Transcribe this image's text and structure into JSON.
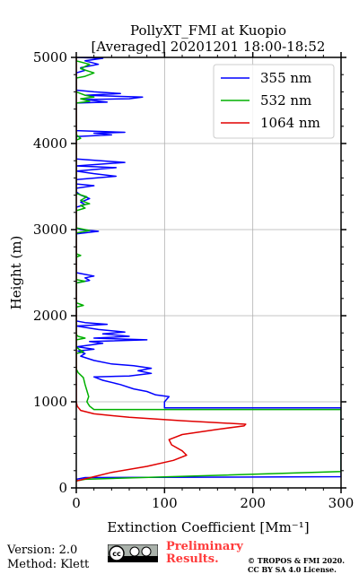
{
  "chart_data": {
    "type": "line",
    "title": "PollyXT_FMI at Kuopio",
    "subtitle": "[Averaged] 20201201 18:00-18:52",
    "xlabel": "Extinction Coefficient [Mm⁻¹]",
    "ylabel": "Height (m)",
    "xlim": [
      0,
      300
    ],
    "ylim": [
      0,
      5000
    ],
    "x_ticks": [
      "0",
      "100",
      "200",
      "300"
    ],
    "y_ticks": [
      "0",
      "1000",
      "2000",
      "3000",
      "4000",
      "5000"
    ],
    "grid": true,
    "legend_position": "top-right",
    "series": [
      {
        "name": "355 nm",
        "color": "#0000ff",
        "points": [
          [
            0,
            100
          ],
          [
            10,
            120
          ],
          [
            300,
            130
          ],
          [
            300,
            930
          ],
          [
            100,
            930
          ],
          [
            100,
            1000
          ],
          [
            105,
            1060
          ],
          [
            90,
            1080
          ],
          [
            80,
            1120
          ],
          [
            65,
            1150
          ],
          [
            50,
            1200
          ],
          [
            30,
            1250
          ],
          [
            20,
            1290
          ],
          [
            60,
            1300
          ],
          [
            85,
            1330
          ],
          [
            70,
            1360
          ],
          [
            85,
            1390
          ],
          [
            65,
            1420
          ],
          [
            40,
            1440
          ],
          [
            20,
            1480
          ],
          [
            5,
            1530
          ],
          [
            10,
            1560
          ],
          [
            2,
            1590
          ],
          [
            20,
            1610
          ],
          [
            1,
            1640
          ],
          [
            30,
            1680
          ],
          [
            15,
            1700
          ],
          [
            80,
            1720
          ],
          [
            20,
            1740
          ],
          [
            60,
            1760
          ],
          [
            30,
            1790
          ],
          [
            55,
            1810
          ],
          [
            25,
            1840
          ],
          [
            0,
            1880
          ],
          [
            35,
            1900
          ],
          [
            10,
            1920
          ],
          [
            0,
            1940
          ],
          [
            0,
            2380
          ],
          [
            15,
            2410
          ],
          [
            10,
            2440
          ],
          [
            20,
            2460
          ],
          [
            5,
            2490
          ],
          [
            0,
            2500
          ],
          [
            0,
            2950
          ],
          [
            25,
            2980
          ],
          [
            5,
            3000
          ],
          [
            0,
            3020
          ],
          [
            0,
            3260
          ],
          [
            10,
            3290
          ],
          [
            5,
            3320
          ],
          [
            15,
            3360
          ],
          [
            5,
            3400
          ],
          [
            0,
            3440
          ],
          [
            0,
            3480
          ],
          [
            20,
            3510
          ],
          [
            0,
            3530
          ],
          [
            0,
            3580
          ],
          [
            45,
            3620
          ],
          [
            20,
            3650
          ],
          [
            0,
            3680
          ],
          [
            45,
            3720
          ],
          [
            0,
            3740
          ],
          [
            55,
            3780
          ],
          [
            0,
            3820
          ],
          [
            0,
            4080
          ],
          [
            40,
            4100
          ],
          [
            20,
            4120
          ],
          [
            55,
            4130
          ],
          [
            0,
            4150
          ],
          [
            0,
            4470
          ],
          [
            35,
            4480
          ],
          [
            10,
            4510
          ],
          [
            60,
            4520
          ],
          [
            75,
            4540
          ],
          [
            10,
            4560
          ],
          [
            50,
            4580
          ],
          [
            20,
            4600
          ],
          [
            0,
            4620
          ],
          [
            0,
            4820
          ],
          [
            10,
            4850
          ],
          [
            5,
            4880
          ],
          [
            25,
            4920
          ],
          [
            10,
            4960
          ],
          [
            30,
            4990
          ],
          [
            0,
            5000
          ]
        ]
      },
      {
        "name": "532 nm",
        "color": "#00b000",
        "points": [
          [
            0,
            80
          ],
          [
            10,
            100
          ],
          [
            300,
            190
          ],
          [
            300,
            910
          ],
          [
            20,
            910
          ],
          [
            15,
            950
          ],
          [
            12,
            1000
          ],
          [
            14,
            1060
          ],
          [
            12,
            1130
          ],
          [
            10,
            1200
          ],
          [
            8,
            1280
          ],
          [
            2,
            1340
          ],
          [
            0,
            1380
          ],
          [
            0,
            1560
          ],
          [
            8,
            1580
          ],
          [
            3,
            1610
          ],
          [
            0,
            1640
          ],
          [
            0,
            1720
          ],
          [
            10,
            1740
          ],
          [
            2,
            1760
          ],
          [
            0,
            1780
          ],
          [
            0,
            2100
          ],
          [
            8,
            2120
          ],
          [
            0,
            2150
          ],
          [
            0,
            2380
          ],
          [
            10,
            2400
          ],
          [
            0,
            2420
          ],
          [
            0,
            2680
          ],
          [
            5,
            2700
          ],
          [
            0,
            2720
          ],
          [
            0,
            2960
          ],
          [
            15,
            2990
          ],
          [
            0,
            3020
          ],
          [
            0,
            3220
          ],
          [
            10,
            3250
          ],
          [
            5,
            3280
          ],
          [
            15,
            3300
          ],
          [
            5,
            3340
          ],
          [
            12,
            3380
          ],
          [
            0,
            3420
          ],
          [
            0,
            4040
          ],
          [
            5,
            4060
          ],
          [
            0,
            4100
          ],
          [
            0,
            4470
          ],
          [
            15,
            4490
          ],
          [
            5,
            4520
          ],
          [
            20,
            4540
          ],
          [
            10,
            4560
          ],
          [
            0,
            4600
          ],
          [
            0,
            4760
          ],
          [
            10,
            4780
          ],
          [
            20,
            4820
          ],
          [
            5,
            4870
          ],
          [
            15,
            4920
          ],
          [
            0,
            4960
          ],
          [
            0,
            5000
          ]
        ]
      },
      {
        "name": "1064 nm",
        "color": "#e00000",
        "points": [
          [
            0,
            80
          ],
          [
            20,
            130
          ],
          [
            40,
            180
          ],
          [
            80,
            250
          ],
          [
            110,
            320
          ],
          [
            125,
            380
          ],
          [
            120,
            430
          ],
          [
            108,
            500
          ],
          [
            105,
            560
          ],
          [
            120,
            620
          ],
          [
            160,
            680
          ],
          [
            190,
            720
          ],
          [
            192,
            740
          ],
          [
            120,
            780
          ],
          [
            60,
            820
          ],
          [
            20,
            860
          ],
          [
            5,
            900
          ],
          [
            1,
            950
          ],
          [
            0,
            1000
          ],
          [
            0,
            5000
          ]
        ]
      }
    ]
  },
  "footer": {
    "version": "Version: 2.0",
    "method": "Method: Klett",
    "preliminary": "Preliminary Results.",
    "copyright_line1": "© TROPOS & FMI 2020.",
    "copyright_line2": "CC BY SA 4.0 License."
  }
}
